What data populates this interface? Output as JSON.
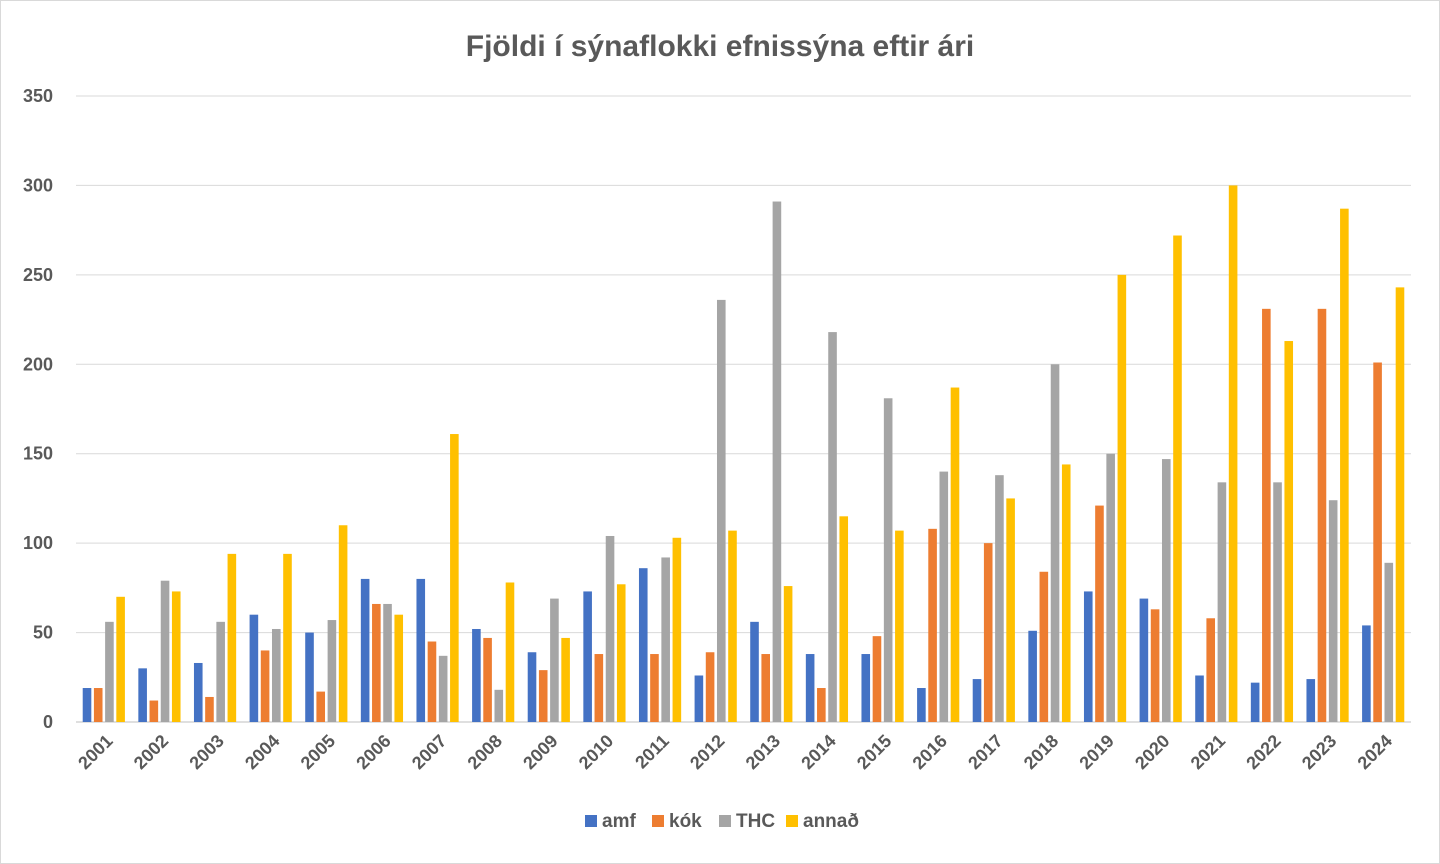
{
  "chart_data": {
    "type": "bar",
    "title": "Fjöldi í sýnaflokki efnissýna eftir ári",
    "xlabel": "",
    "ylabel": "",
    "ylim": [
      0,
      350
    ],
    "yticks": [
      0,
      50,
      100,
      150,
      200,
      250,
      300,
      350
    ],
    "grid": true,
    "legend_position": "bottom",
    "categories": [
      "2001",
      "2002",
      "2003",
      "2004",
      "2005",
      "2006",
      "2007",
      "2008",
      "2009",
      "2010",
      "2011",
      "2012",
      "2013",
      "2014",
      "2015",
      "2016",
      "2017",
      "2018",
      "2019",
      "2020",
      "2021",
      "2022",
      "2023",
      "2024"
    ],
    "series": [
      {
        "name": "amf",
        "color": "#4472C4",
        "values": [
          19,
          30,
          33,
          60,
          50,
          80,
          80,
          52,
          39,
          73,
          86,
          26,
          56,
          38,
          38,
          19,
          24,
          51,
          73,
          69,
          26,
          22,
          24,
          54
        ]
      },
      {
        "name": "kók",
        "color": "#ED7D31",
        "values": [
          19,
          12,
          14,
          40,
          17,
          66,
          45,
          47,
          29,
          38,
          38,
          39,
          38,
          19,
          48,
          108,
          100,
          84,
          121,
          63,
          58,
          231,
          231,
          201
        ]
      },
      {
        "name": "THC",
        "color": "#A5A5A5",
        "values": [
          56,
          79,
          56,
          52,
          57,
          66,
          37,
          18,
          69,
          104,
          92,
          236,
          291,
          218,
          181,
          140,
          138,
          200,
          150,
          147,
          134,
          134,
          124,
          89
        ]
      },
      {
        "name": "annað",
        "color": "#FFC000",
        "values": [
          70,
          73,
          94,
          94,
          110,
          60,
          161,
          78,
          47,
          77,
          103,
          107,
          76,
          115,
          107,
          187,
          125,
          144,
          250,
          272,
          300,
          213,
          287,
          243
        ]
      }
    ]
  }
}
